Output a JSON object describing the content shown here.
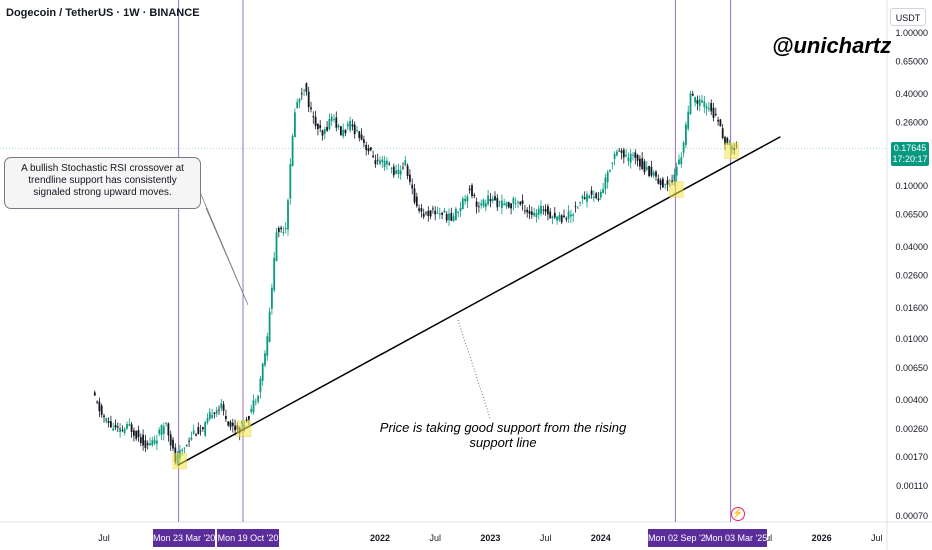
{
  "header": {
    "title": "Dogecoin / TetherUS · 1W · BINANCE",
    "currency": "USDT"
  },
  "watermark": "@unichartz",
  "chart_data": {
    "type": "candlestick",
    "title": "Dogecoin / TetherUS · 1W · BINANCE",
    "y_scale": "log",
    "y_ticks": [
      "1.00000",
      "0.65000",
      "0.40000",
      "0.26000",
      "0.17000",
      "0.10000",
      "0.06500",
      "0.04000",
      "0.02600",
      "0.01600",
      "0.01000",
      "0.00650",
      "0.00400",
      "0.00260",
      "0.00170",
      "0.00110",
      "0.00070"
    ],
    "x_ticks": [
      "Jul",
      "2022",
      "Jul",
      "2023",
      "Jul",
      "2024",
      "Jul",
      "2026",
      "Jul"
    ],
    "current_price": "0.17645",
    "countdown": "17:20:17",
    "series": [
      {
        "x": "2019-06",
        "y": 0.0044
      },
      {
        "x": "2019-07",
        "y": 0.0032
      },
      {
        "x": "2019-08",
        "y": 0.0027
      },
      {
        "x": "2019-09",
        "y": 0.0025
      },
      {
        "x": "2019-10",
        "y": 0.0027
      },
      {
        "x": "2019-11",
        "y": 0.0023
      },
      {
        "x": "2019-12",
        "y": 0.002
      },
      {
        "x": "2020-01",
        "y": 0.0023
      },
      {
        "x": "2020-02",
        "y": 0.0029
      },
      {
        "x": "2020-03",
        "y": 0.0016
      },
      {
        "x": "2020-04",
        "y": 0.002
      },
      {
        "x": "2020-05",
        "y": 0.0025
      },
      {
        "x": "2020-06",
        "y": 0.0025
      },
      {
        "x": "2020-07",
        "y": 0.0034
      },
      {
        "x": "2020-08",
        "y": 0.0036
      },
      {
        "x": "2020-09",
        "y": 0.0027
      },
      {
        "x": "2020-10",
        "y": 0.0026
      },
      {
        "x": "2020-11",
        "y": 0.0032
      },
      {
        "x": "2020-12",
        "y": 0.0046
      },
      {
        "x": "2021-01",
        "y": 0.01
      },
      {
        "x": "2021-02",
        "y": 0.05
      },
      {
        "x": "2021-03",
        "y": 0.055
      },
      {
        "x": "2021-04",
        "y": 0.32
      },
      {
        "x": "2021-05",
        "y": 0.45
      },
      {
        "x": "2021-06",
        "y": 0.27
      },
      {
        "x": "2021-07",
        "y": 0.21
      },
      {
        "x": "2021-08",
        "y": 0.29
      },
      {
        "x": "2021-09",
        "y": 0.22
      },
      {
        "x": "2021-10",
        "y": 0.25
      },
      {
        "x": "2021-11",
        "y": 0.22
      },
      {
        "x": "2021-12",
        "y": 0.17
      },
      {
        "x": "2022-01",
        "y": 0.14
      },
      {
        "x": "2022-02",
        "y": 0.14
      },
      {
        "x": "2022-03",
        "y": 0.12
      },
      {
        "x": "2022-04",
        "y": 0.14
      },
      {
        "x": "2022-05",
        "y": 0.08
      },
      {
        "x": "2022-06",
        "y": 0.065
      },
      {
        "x": "2022-07",
        "y": 0.068
      },
      {
        "x": "2022-08",
        "y": 0.067
      },
      {
        "x": "2022-09",
        "y": 0.061
      },
      {
        "x": "2022-10",
        "y": 0.075
      },
      {
        "x": "2022-11",
        "y": 0.097
      },
      {
        "x": "2022-12",
        "y": 0.072
      },
      {
        "x": "2023-01",
        "y": 0.083
      },
      {
        "x": "2023-02",
        "y": 0.078
      },
      {
        "x": "2023-03",
        "y": 0.074
      },
      {
        "x": "2023-04",
        "y": 0.08
      },
      {
        "x": "2023-05",
        "y": 0.072
      },
      {
        "x": "2023-06",
        "y": 0.064
      },
      {
        "x": "2023-07",
        "y": 0.072
      },
      {
        "x": "2023-08",
        "y": 0.064
      },
      {
        "x": "2023-09",
        "y": 0.062
      },
      {
        "x": "2023-10",
        "y": 0.066
      },
      {
        "x": "2023-11",
        "y": 0.08
      },
      {
        "x": "2023-12",
        "y": 0.09
      },
      {
        "x": "2024-01",
        "y": 0.082
      },
      {
        "x": "2024-02",
        "y": 0.12
      },
      {
        "x": "2024-03",
        "y": 0.18
      },
      {
        "x": "2024-04",
        "y": 0.15
      },
      {
        "x": "2024-05",
        "y": 0.16
      },
      {
        "x": "2024-06",
        "y": 0.13
      },
      {
        "x": "2024-07",
        "y": 0.12
      },
      {
        "x": "2024-08",
        "y": 0.1
      },
      {
        "x": "2024-09",
        "y": 0.11
      },
      {
        "x": "2024-10",
        "y": 0.16
      },
      {
        "x": "2024-11",
        "y": 0.38
      },
      {
        "x": "2024-12",
        "y": 0.35
      },
      {
        "x": "2025-01",
        "y": 0.33
      },
      {
        "x": "2025-02",
        "y": 0.26
      },
      {
        "x": "2025-03",
        "y": 0.18
      }
    ],
    "support_line": {
      "from": {
        "x": "2020-03",
        "y": 0.0015
      },
      "to": {
        "x": "2025-07",
        "y": 0.21
      }
    },
    "vertical_markers": [
      {
        "x": "2020-03",
        "label": "Mon 23 Mar '20"
      },
      {
        "x": "2020-10",
        "label": "Mon 19 Oct '20"
      },
      {
        "x": "2024-09",
        "label": "Mon 02 Sep '24"
      },
      {
        "x": "2025-03",
        "label": "Mon 03 Mar '25"
      }
    ],
    "touch_points": [
      {
        "x": "2020-03",
        "y": 0.0016
      },
      {
        "x": "2020-10",
        "y": 0.0026
      },
      {
        "x": "2024-09",
        "y": 0.095
      },
      {
        "x": "2025-03",
        "y": 0.17
      }
    ],
    "annotations": [
      "A bullish Stochastic RSI crossover at trendline support has consistently signaled strong upward moves.",
      "Price is taking good  support from the rising support line"
    ]
  },
  "colors": {
    "up": "#089981",
    "down": "#131722",
    "marker": "#7e57c2",
    "date_tag": "#5b2d9b",
    "support": "#000000",
    "touch": "#f5e642"
  }
}
